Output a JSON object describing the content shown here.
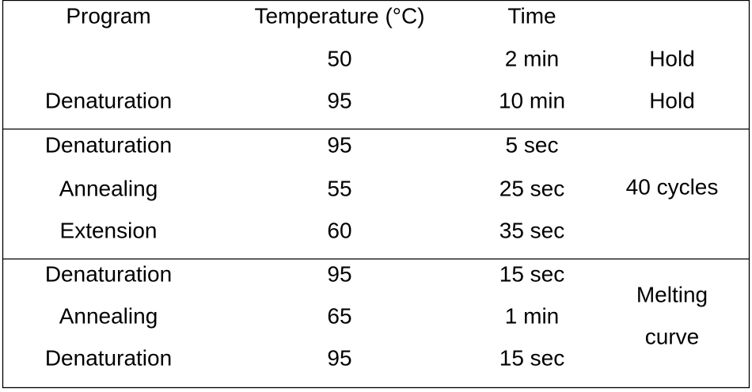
{
  "table": {
    "header": [
      "Program",
      "Temperature (°C)",
      "Time"
    ],
    "groups": [
      {
        "rows": [
          [
            null,
            50,
            "2 min"
          ],
          [
            "Denaturation",
            95,
            "10 min"
          ]
        ],
        "row_notes": [
          "Hold",
          "Hold"
        ]
      },
      {
        "rows": [
          [
            "Denaturation",
            95,
            "5 sec"
          ],
          [
            "Annealing",
            55,
            "25 sec"
          ],
          [
            "Extension",
            60,
            "35 sec"
          ]
        ],
        "note": [
          "40 cycles"
        ]
      },
      {
        "rows": [
          [
            "Denaturation",
            95,
            "15 sec"
          ],
          [
            "Annealing",
            65,
            "1 min"
          ],
          [
            "Denaturation",
            95,
            "15 sec"
          ]
        ],
        "note": [
          "Melting",
          "curve"
        ]
      }
    ]
  }
}
